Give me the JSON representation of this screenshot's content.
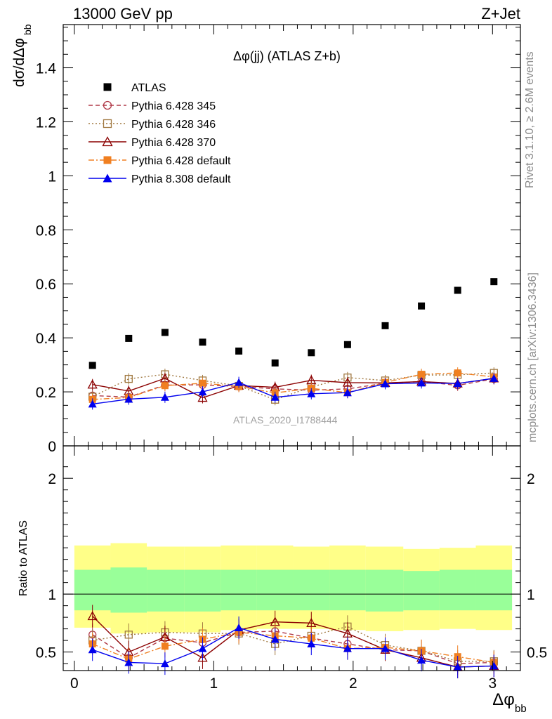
{
  "header": {
    "left": "13000 GeV pp",
    "right": "Z+Jet"
  },
  "side_labels": {
    "rivet": "Rivet 3.1.10, ≥ 2.6M events",
    "mcplots": "mcplots.cern.ch [arXiv:1306.3436]"
  },
  "watermark": "ATLAS_2020_I1788444",
  "chart_data": [
    {
      "type": "scatter",
      "title": "Δφ(jj) (ATLAS Z+b)",
      "xlabel": "Δφ_bb",
      "ylabel": "dσ/dΔφ_bb",
      "xlim": [
        -0.08,
        3.2
      ],
      "ylim": [
        0,
        1.56
      ],
      "x_ticks": [
        "0",
        "1",
        "2",
        "3"
      ],
      "y_ticks": [
        "0",
        "0.2",
        "0.4",
        "0.6",
        "0.8",
        "1",
        "1.2",
        "1.4"
      ],
      "legend_position": "top-left",
      "x": [
        0.13,
        0.39,
        0.65,
        0.92,
        1.18,
        1.44,
        1.7,
        1.96,
        2.23,
        2.49,
        2.75,
        3.01
      ],
      "series": [
        {
          "name": "ATLAS",
          "color": "#000000",
          "marker": "square-filled",
          "line": "none",
          "values": [
            0.298,
            0.398,
            0.42,
            0.384,
            0.351,
            0.307,
            0.345,
            0.375,
            0.445,
            0.518,
            0.576,
            0.608
          ]
        },
        {
          "name": "Pythia 6.428 345",
          "color": "#b03a48",
          "marker": "circle-open",
          "line": "dashed",
          "values": [
            0.186,
            0.181,
            0.225,
            0.226,
            0.22,
            0.211,
            0.206,
            0.211,
            0.232,
            0.238,
            0.224,
            0.248
          ]
        },
        {
          "name": "Pythia 6.428 346",
          "color": "#a07840",
          "marker": "square-open",
          "line": "dotted",
          "values": [
            0.182,
            0.248,
            0.265,
            0.242,
            0.222,
            0.171,
            0.218,
            0.253,
            0.242,
            0.262,
            0.263,
            0.27
          ]
        },
        {
          "name": "Pythia 6.428 370",
          "color": "#8b0000",
          "marker": "triangle-open",
          "line": "solid",
          "values": [
            0.227,
            0.203,
            0.25,
            0.178,
            0.223,
            0.217,
            0.243,
            0.234,
            0.233,
            0.238,
            0.231,
            0.25
          ]
        },
        {
          "name": "Pythia 6.428 default",
          "color": "#f07f20",
          "marker": "square-filled",
          "line": "dashdot",
          "values": [
            0.172,
            0.179,
            0.223,
            0.232,
            0.22,
            0.196,
            0.213,
            0.197,
            0.235,
            0.265,
            0.27,
            0.255
          ]
        },
        {
          "name": "Pythia 8.308 default",
          "color": "#0000ee",
          "marker": "triangle-filled",
          "line": "solid",
          "values": [
            0.155,
            0.173,
            0.18,
            0.2,
            0.235,
            0.18,
            0.193,
            0.197,
            0.23,
            0.233,
            0.231,
            0.25
          ]
        }
      ]
    },
    {
      "type": "line",
      "ylabel": "Ratio to ATLAS",
      "xlim": [
        -0.08,
        3.2
      ],
      "ylim": [
        0.34,
        2.28
      ],
      "x_ticks": [
        "0",
        "1",
        "2",
        "3"
      ],
      "y_ticks": [
        "0.5",
        "1",
        "2"
      ],
      "reference_line": 1,
      "x": [
        0.13,
        0.39,
        0.65,
        0.92,
        1.18,
        1.44,
        1.7,
        1.96,
        2.23,
        2.49,
        2.75,
        3.01
      ],
      "bands": {
        "bin_edges": [
          0,
          0.26,
          0.52,
          0.79,
          1.05,
          1.31,
          1.57,
          1.83,
          2.09,
          2.36,
          2.62,
          2.88,
          3.14
        ],
        "outer": {
          "color": "#ffff88",
          "low": [
            0.71,
            0.66,
            0.67,
            0.67,
            0.69,
            0.7,
            0.7,
            0.69,
            0.68,
            0.69,
            0.7,
            0.69
          ],
          "high": [
            1.42,
            1.44,
            1.41,
            1.41,
            1.42,
            1.42,
            1.41,
            1.42,
            1.41,
            1.39,
            1.4,
            1.42
          ]
        },
        "inner": {
          "color": "#99ff99",
          "low": [
            0.86,
            0.84,
            0.85,
            0.85,
            0.86,
            0.86,
            0.86,
            0.86,
            0.85,
            0.86,
            0.86,
            0.86
          ],
          "high": [
            1.21,
            1.23,
            1.21,
            1.21,
            1.21,
            1.21,
            1.21,
            1.21,
            1.21,
            1.2,
            1.21,
            1.21
          ]
        }
      },
      "series": [
        {
          "name": "Pythia 6.428 345",
          "values": [
            0.65,
            0.45,
            0.62,
            0.58,
            0.67,
            0.68,
            0.62,
            0.57,
            0.52,
            0.51,
            0.4,
            0.41
          ]
        },
        {
          "name": "Pythia 6.428 346",
          "values": [
            0.6,
            0.65,
            0.67,
            0.66,
            0.66,
            0.57,
            0.64,
            0.72,
            0.56,
            0.51,
            0.42,
            0.42
          ]
        },
        {
          "name": "Pythia 6.428 370",
          "values": [
            0.81,
            0.5,
            0.63,
            0.45,
            0.69,
            0.76,
            0.75,
            0.66,
            0.52,
            0.45,
            0.37,
            0.38
          ]
        },
        {
          "name": "Pythia 6.428 default",
          "values": [
            0.57,
            0.44,
            0.55,
            0.61,
            0.67,
            0.64,
            0.62,
            0.53,
            0.54,
            0.51,
            0.46,
            0.41
          ]
        },
        {
          "name": "Pythia 8.308 default",
          "values": [
            0.52,
            0.41,
            0.4,
            0.53,
            0.71,
            0.61,
            0.57,
            0.53,
            0.53,
            0.43,
            0.37,
            0.38
          ]
        }
      ]
    }
  ]
}
